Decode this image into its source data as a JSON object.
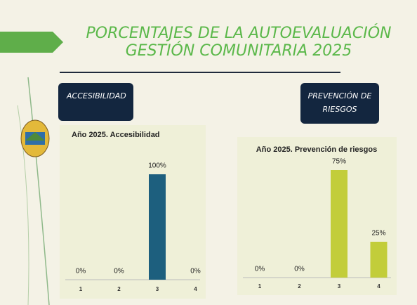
{
  "slide": {
    "title_lines": [
      "PORCENTAJES DE LA AUTOEVALUACIÓN",
      "GESTIÓN COMUNITARIA 2025"
    ],
    "labels": [
      [
        "ACCESIBILIDAD"
      ],
      [
        "PREVENCIÓN DE",
        "RIESGOS"
      ]
    ]
  },
  "chart_data": [
    {
      "type": "bar",
      "title": "Año 2025. Accesibilidad",
      "categories": [
        "1",
        "2",
        "3",
        "4"
      ],
      "values": [
        0,
        0,
        100,
        0
      ],
      "value_labels": [
        "0%",
        "0%",
        "100%",
        "0%"
      ],
      "color": "#1d5f7e"
    },
    {
      "type": "bar",
      "title": "Año 2025. Prevención de riesgos",
      "categories": [
        "1",
        "2",
        "3",
        "4"
      ],
      "values": [
        0,
        0,
        75,
        25
      ],
      "value_labels": [
        "0%",
        "0%",
        "75%",
        "25%"
      ],
      "color": "#c2cd3a"
    }
  ]
}
